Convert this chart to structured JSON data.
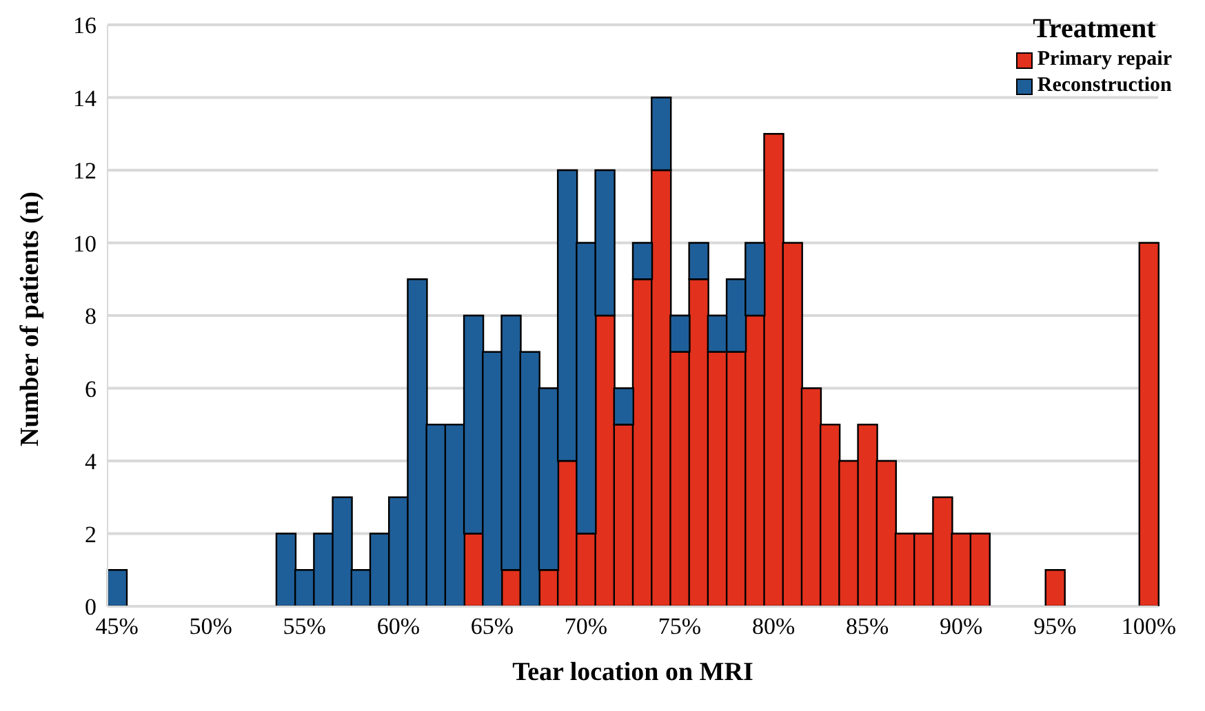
{
  "chart_data": {
    "type": "bar",
    "stacked": true,
    "xlabel": "Tear location on MRI",
    "ylabel": "Number of patients (n)",
    "legend_title": "Treatment",
    "categories": [
      "45%",
      null,
      null,
      null,
      null,
      "50%",
      null,
      null,
      null,
      null,
      "55%",
      null,
      null,
      null,
      null,
      "60%",
      null,
      null,
      null,
      null,
      "65%",
      null,
      null,
      null,
      null,
      "70%",
      null,
      null,
      null,
      null,
      "75%",
      null,
      null,
      null,
      null,
      "80%",
      null,
      null,
      null,
      null,
      "85%",
      null,
      null,
      null,
      null,
      "90%",
      null,
      null,
      null,
      null,
      "95%",
      null,
      null,
      null,
      null,
      "100%"
    ],
    "series": [
      {
        "name": "Primary repair",
        "color": "#e2311d",
        "values": [
          0,
          0,
          0,
          0,
          0,
          0,
          0,
          0,
          0,
          0,
          0,
          0,
          0,
          0,
          0,
          0,
          0,
          0,
          0,
          2,
          0,
          1,
          0,
          1,
          4,
          2,
          8,
          5,
          9,
          12,
          7,
          9,
          7,
          7,
          8,
          13,
          10,
          6,
          5,
          4,
          5,
          4,
          2,
          2,
          3,
          2,
          2,
          0,
          0,
          0,
          1,
          0,
          0,
          0,
          0,
          10
        ]
      },
      {
        "name": "Reconstruction",
        "color": "#1f5f99",
        "values": [
          1,
          0,
          0,
          0,
          0,
          0,
          0,
          0,
          0,
          2,
          1,
          2,
          3,
          1,
          2,
          3,
          9,
          5,
          5,
          6,
          7,
          7,
          7,
          5,
          8,
          8,
          4,
          1,
          1,
          2,
          1,
          1,
          1,
          2,
          2,
          0,
          0,
          0,
          0,
          0,
          0,
          0,
          0,
          0,
          0,
          0,
          0,
          0,
          0,
          0,
          0,
          0,
          0,
          0,
          0,
          0
        ]
      }
    ],
    "ylim": [
      0,
      16
    ],
    "yticks": [
      0,
      2,
      4,
      6,
      8,
      10,
      12,
      14,
      16
    ],
    "grid": "y",
    "legend": "top right"
  }
}
